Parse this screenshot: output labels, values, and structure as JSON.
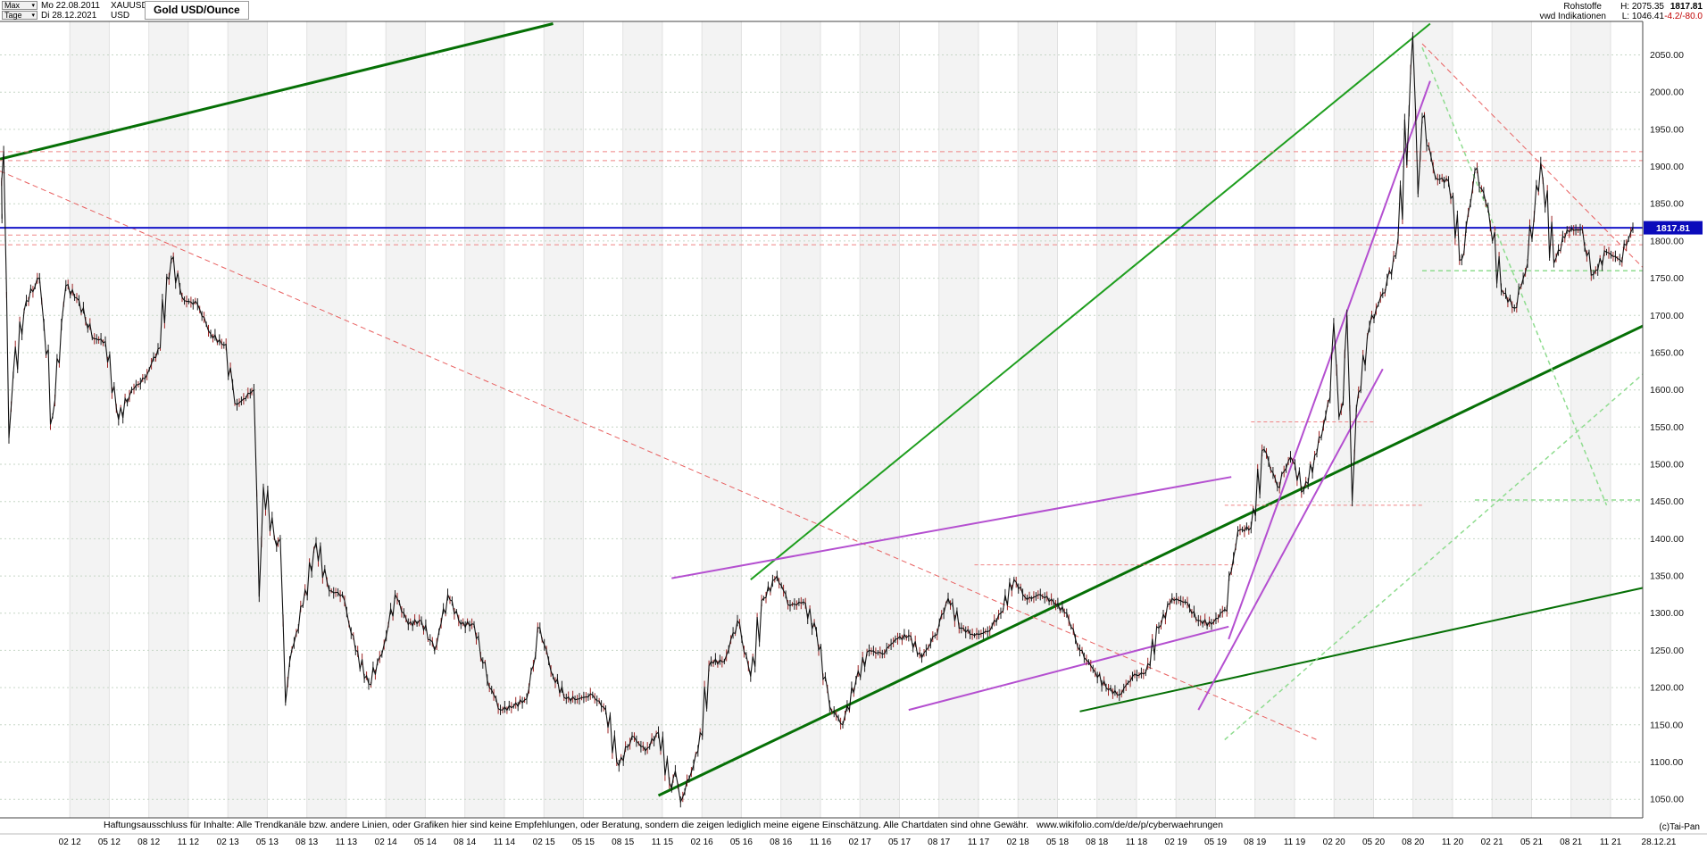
{
  "header": {
    "range": "Max",
    "period": "Tage",
    "start_date": "Mo 22.08.2011",
    "symbol": "XAUUSD",
    "end_date": "Di 28.12.2021",
    "currency": "USD",
    "title": "Gold USD/Ounce",
    "category": "Rohstoffe",
    "provider": "vwd Indikationen",
    "high": "H: 2075.35",
    "low": "L: 1046.41",
    "last": "1817.81",
    "change": "-4.2/-80.0"
  },
  "footer": {
    "disclaimer": "Haftungsausschluss für Inhalte: Alle Trendkanäle bzw. andere Linien, oder Grafiken hier sind keine Empfehlungen, oder Beratung, sondern die zeigen lediglich meine eigene Einschätzung. Alle Chartdaten sind ohne Gewähr.",
    "link": "www.wikifolio.com/de/de/p/cyberwaehrungen",
    "copyright": "(c)Tai-Pan"
  },
  "axes": {
    "price_ticks": [
      2050,
      2000,
      1950,
      1900,
      1850,
      1800,
      1750,
      1700,
      1650,
      1600,
      1550,
      1500,
      1450,
      1400,
      1350,
      1300,
      1250,
      1200,
      1150,
      1100,
      1050
    ],
    "date_ticks": [
      {
        "label": "02 12",
        "m": 5.3
      },
      {
        "label": "05 12",
        "m": 8.3
      },
      {
        "label": "08 12",
        "m": 11.3
      },
      {
        "label": "11 12",
        "m": 14.3
      },
      {
        "label": "02 13",
        "m": 17.3
      },
      {
        "label": "05 13",
        "m": 20.3
      },
      {
        "label": "08 13",
        "m": 23.3
      },
      {
        "label": "11 13",
        "m": 26.3
      },
      {
        "label": "02 14",
        "m": 29.3
      },
      {
        "label": "05 14",
        "m": 32.3
      },
      {
        "label": "08 14",
        "m": 35.3
      },
      {
        "label": "11 14",
        "m": 38.3
      },
      {
        "label": "02 15",
        "m": 41.3
      },
      {
        "label": "05 15",
        "m": 44.3
      },
      {
        "label": "08 15",
        "m": 47.3
      },
      {
        "label": "11 15",
        "m": 50.3
      },
      {
        "label": "02 16",
        "m": 53.3
      },
      {
        "label": "05 16",
        "m": 56.3
      },
      {
        "label": "08 16",
        "m": 59.3
      },
      {
        "label": "11 16",
        "m": 62.3
      },
      {
        "label": "02 17",
        "m": 65.3
      },
      {
        "label": "05 17",
        "m": 68.3
      },
      {
        "label": "08 17",
        "m": 71.3
      },
      {
        "label": "11 17",
        "m": 74.3
      },
      {
        "label": "02 18",
        "m": 77.3
      },
      {
        "label": "05 18",
        "m": 80.3
      },
      {
        "label": "08 18",
        "m": 83.3
      },
      {
        "label": "11 18",
        "m": 86.3
      },
      {
        "label": "02 19",
        "m": 89.3
      },
      {
        "label": "05 19",
        "m": 92.3
      },
      {
        "label": "08 19",
        "m": 95.3
      },
      {
        "label": "11 19",
        "m": 98.3
      },
      {
        "label": "02 20",
        "m": 101.3
      },
      {
        "label": "05 20",
        "m": 104.3
      },
      {
        "label": "08 20",
        "m": 107.3
      },
      {
        "label": "11 20",
        "m": 110.3
      },
      {
        "label": "02 21",
        "m": 113.3
      },
      {
        "label": "05 21",
        "m": 116.3
      },
      {
        "label": "08 21",
        "m": 119.3
      },
      {
        "label": "11 21",
        "m": 122.3
      }
    ],
    "last_date_label": "28.12.21",
    "current_price": 1817.81,
    "current_price_label": "1817.81"
  },
  "chart_data": {
    "type": "line",
    "title": "Gold USD/Ounce",
    "instrument": "XAUUSD",
    "unit": "USD per ounce",
    "x_start": "22.08.2011",
    "x_end": "28.12.2021",
    "x_unit": "month index from 22.08.2011 (monthly closes approximating daily candles)",
    "ylim": [
      1025,
      2095
    ],
    "high": 2075.35,
    "low": 1046.41,
    "last": 1817.81,
    "values": [
      1830,
      1620,
      1720,
      1750,
      1565,
      1740,
      1720,
      1670,
      1665,
      1560,
      1600,
      1615,
      1655,
      1775,
      1720,
      1715,
      1675,
      1660,
      1580,
      1595,
      1470,
      1390,
      1235,
      1310,
      1395,
      1330,
      1325,
      1250,
      1205,
      1245,
      1325,
      1285,
      1290,
      1250,
      1325,
      1285,
      1285,
      1210,
      1170,
      1175,
      1185,
      1280,
      1215,
      1185,
      1185,
      1190,
      1170,
      1095,
      1135,
      1115,
      1140,
      1065,
      1060,
      1115,
      1235,
      1235,
      1290,
      1215,
      1320,
      1350,
      1310,
      1315,
      1275,
      1175,
      1150,
      1210,
      1250,
      1245,
      1265,
      1270,
      1240,
      1270,
      1320,
      1280,
      1270,
      1275,
      1300,
      1345,
      1318,
      1325,
      1315,
      1300,
      1250,
      1225,
      1200,
      1190,
      1215,
      1220,
      1280,
      1320,
      1315,
      1290,
      1285,
      1305,
      1410,
      1415,
      1520,
      1470,
      1510,
      1465,
      1515,
      1590,
      1585,
      1575,
      1685,
      1730,
      1780,
      1975,
      1965,
      1885,
      1880,
      1775,
      1895,
      1845,
      1735,
      1710,
      1770,
      1905,
      1770,
      1815,
      1815,
      1755,
      1785,
      1775,
      1817.81
    ],
    "extremes": [
      {
        "i": 1,
        "high": 1920,
        "low": 1535
      },
      {
        "i": 20,
        "high": 1600,
        "low": 1322
      },
      {
        "i": 22,
        "high": 1400,
        "low": 1180
      },
      {
        "i": 52,
        "high": 1088,
        "low": 1046.41
      },
      {
        "i": 102,
        "high": 1690,
        "low": 1563
      },
      {
        "i": 103,
        "high": 1700,
        "low": 1451
      },
      {
        "i": 108,
        "high": 2075.35,
        "low": 1863
      }
    ],
    "annotations": {
      "trend_lines": [
        {
          "name": "upper-green-trend",
          "m1": 0,
          "p1": 1910,
          "m2": 42,
          "p2": 2092,
          "color": "#067006",
          "w": 3
        },
        {
          "name": "main-green-support",
          "m1": 50,
          "p1": 1055,
          "m2": 125,
          "p2": 1688,
          "color": "#067006",
          "w": 3
        },
        {
          "name": "lower-green-support",
          "m1": 82,
          "p1": 1168,
          "m2": 125,
          "p2": 1335,
          "color": "#067006",
          "w": 2
        },
        {
          "name": "rally-green-trend",
          "m1": 57,
          "p1": 1345,
          "m2": 108.6,
          "p2": 2092,
          "color": "#1e9e1e",
          "w": 2
        },
        {
          "name": "resistance-1920",
          "m1": 0,
          "p1": 1920,
          "m2": 125,
          "p2": 1920,
          "color": "#ef8585",
          "w": 1,
          "dash": "5,4"
        },
        {
          "name": "resistance-1908",
          "m1": 0,
          "p1": 1908,
          "m2": 125,
          "p2": 1908,
          "color": "#ef8585",
          "w": 1,
          "dash": "5,4"
        },
        {
          "name": "level-1808",
          "m1": 0,
          "p1": 1808,
          "m2": 125,
          "p2": 1808,
          "color": "#ef8585",
          "w": 1,
          "dash": "5,4"
        },
        {
          "name": "level-1795",
          "m1": 0,
          "p1": 1795,
          "m2": 125,
          "p2": 1795,
          "color": "#ef8585",
          "w": 1,
          "dash": "5,4"
        },
        {
          "name": "downtrend-2011-2016",
          "m1": 0,
          "p1": 1894,
          "m2": 100,
          "p2": 1130,
          "color": "#e86060",
          "w": 1,
          "dash": "6,4"
        },
        {
          "name": "downtrend-from-2020-peak",
          "m1": 108,
          "p1": 2065,
          "m2": 125,
          "p2": 1760,
          "color": "#e86060",
          "w": 1,
          "dash": "6,4"
        },
        {
          "name": "level-1557",
          "m1": 95,
          "p1": 1557,
          "m2": 104.5,
          "p2": 1557,
          "color": "#ef8585",
          "w": 1,
          "dash": "4,3"
        },
        {
          "name": "level-1445",
          "m1": 93,
          "p1": 1445,
          "m2": 108,
          "p2": 1445,
          "color": "#ef8585",
          "w": 1,
          "dash": "4,3"
        },
        {
          "name": "level-1365",
          "m1": 74,
          "p1": 1365,
          "m2": 94,
          "p2": 1365,
          "color": "#ef8585",
          "w": 1,
          "dash": "4,3"
        },
        {
          "name": "support-1760",
          "m1": 108,
          "p1": 1760,
          "m2": 125,
          "p2": 1760,
          "color": "#8fdc8f",
          "w": 1.5,
          "dash": "5,4"
        },
        {
          "name": "peak-falloff",
          "m1": 108,
          "p1": 2060,
          "m2": 122,
          "p2": 1445,
          "color": "#8fdc8f",
          "w": 1.5,
          "dash": "5,4"
        },
        {
          "name": "rising-green-dashed",
          "m1": 93,
          "p1": 1130,
          "m2": 125,
          "p2": 1625,
          "color": "#8fdc8f",
          "w": 1.5,
          "dash": "5,4"
        },
        {
          "name": "level-1452",
          "m1": 112,
          "p1": 1452,
          "m2": 125,
          "p2": 1452,
          "color": "#8fdc8f",
          "w": 1.5,
          "dash": "5,4"
        },
        {
          "name": "violet-channel-mid",
          "m1": 51,
          "p1": 1347,
          "m2": 93.5,
          "p2": 1483,
          "color": "#b44fd0",
          "w": 2
        },
        {
          "name": "violet-base-channel",
          "m1": 69,
          "p1": 1170,
          "m2": 93.3,
          "p2": 1282,
          "color": "#b44fd0",
          "w": 2
        },
        {
          "name": "violet-rally-left",
          "m1": 91,
          "p1": 1170,
          "m2": 105,
          "p2": 1628,
          "color": "#b44fd0",
          "w": 2
        },
        {
          "name": "violet-rally-right",
          "m1": 93.3,
          "p1": 1265,
          "m2": 108.6,
          "p2": 2015,
          "color": "#b44fd0",
          "w": 2
        }
      ]
    }
  }
}
